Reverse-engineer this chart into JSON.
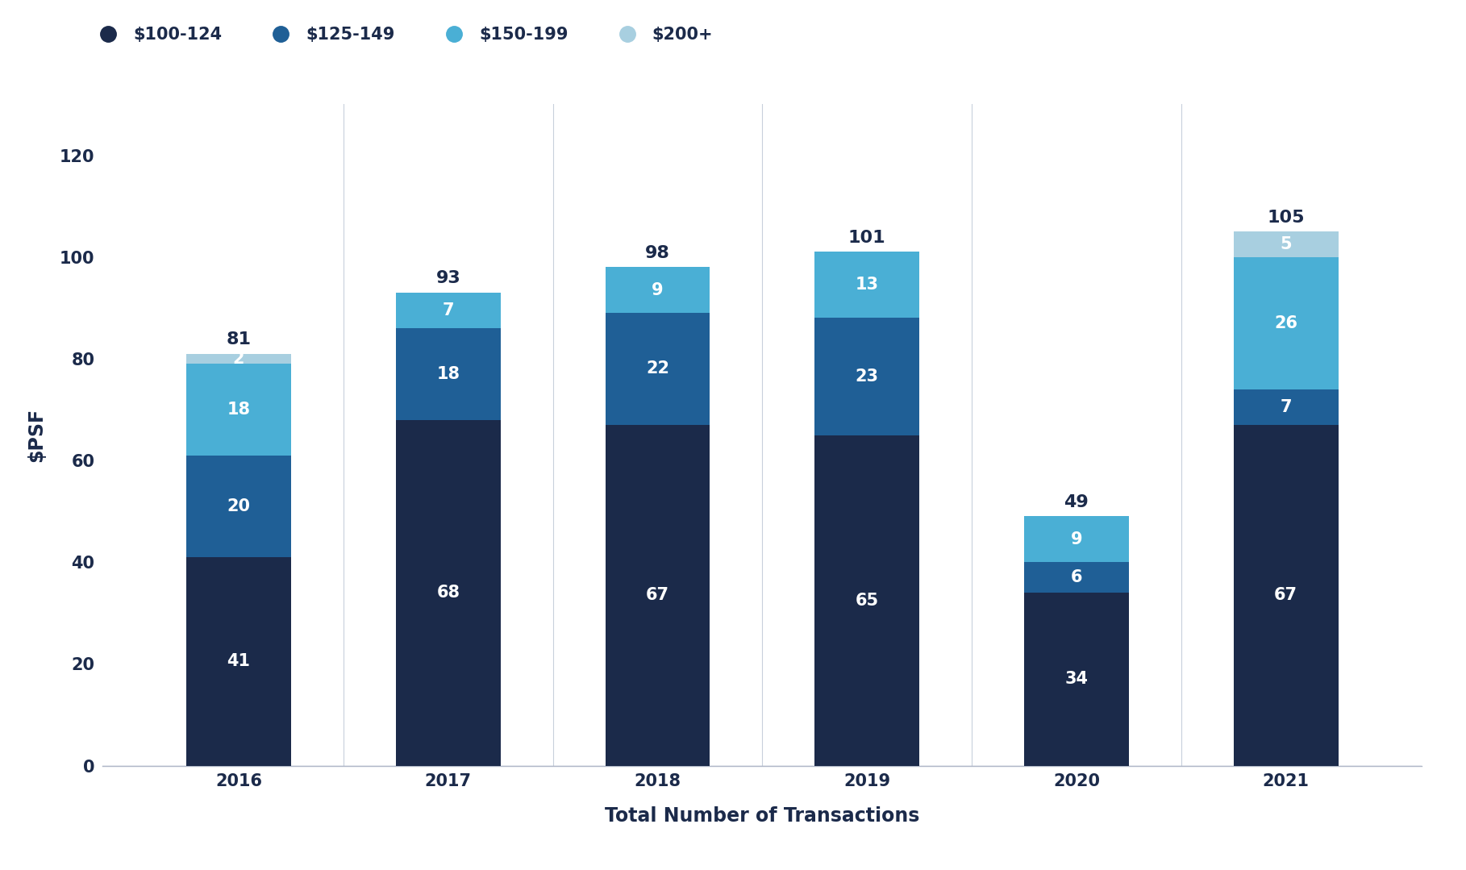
{
  "years": [
    "2016",
    "2017",
    "2018",
    "2019",
    "2020",
    "2021"
  ],
  "series": {
    "$100-124": [
      41,
      68,
      67,
      65,
      34,
      67
    ],
    "$125-149": [
      20,
      18,
      22,
      23,
      6,
      7
    ],
    "$150-199": [
      18,
      7,
      9,
      13,
      9,
      26
    ],
    "$200+": [
      2,
      0,
      0,
      0,
      0,
      5
    ]
  },
  "totals": [
    81,
    93,
    98,
    101,
    49,
    105
  ],
  "colors": {
    "$100-124": "#1b2a4a",
    "$125-149": "#1f5f96",
    "$150-199": "#4aafd5",
    "$200+": "#a8cfe0"
  },
  "ylabel": "$PSF",
  "xlabel": "Total Number of Transactions",
  "ylim": [
    0,
    130
  ],
  "yticks": [
    0,
    20,
    40,
    60,
    80,
    100,
    120
  ],
  "legend_order": [
    "$100-124",
    "$125-149",
    "$150-199",
    "$200+"
  ],
  "background_color": "#ffffff",
  "text_color": "#1b2a4a",
  "bar_width": 0.5,
  "label_fontsize": 15,
  "axis_label_fontsize": 17,
  "tick_fontsize": 15,
  "legend_fontsize": 15,
  "total_label_fontsize": 16
}
